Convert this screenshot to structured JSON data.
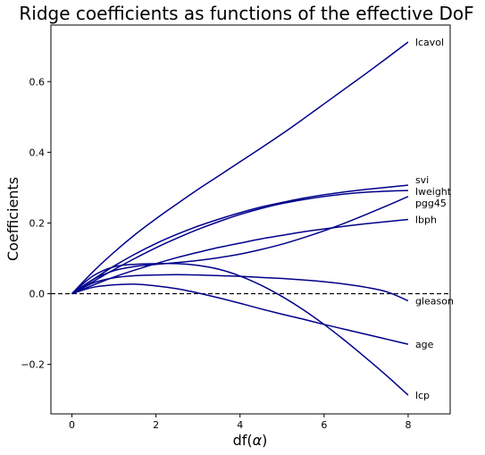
{
  "chart_data": {
    "type": "line",
    "title": "Ridge coefficients as functions of the effective DoF",
    "xlabel_prefix": "df(",
    "xlabel_symbol": "α",
    "xlabel_suffix": ")",
    "ylabel": "Coefficients",
    "xlim": [
      -0.5,
      9.0
    ],
    "ylim": [
      -0.34,
      0.76
    ],
    "xticks": [
      0,
      2,
      4,
      6,
      8
    ],
    "xtick_labels": [
      "0",
      "2",
      "4",
      "6",
      "8"
    ],
    "yticks": [
      -0.2,
      0.0,
      0.2,
      0.4,
      0.6
    ],
    "ytick_labels": [
      "−0.2",
      "0.0",
      "0.2",
      "0.4",
      "0.6"
    ],
    "grid": false,
    "reference_line": {
      "y": 0,
      "style": "dashed"
    },
    "line_color": "#00008b",
    "x": [
      0,
      0.5,
      1,
      1.5,
      2,
      2.5,
      3,
      3.5,
      4,
      4.5,
      5,
      5.5,
      6,
      6.5,
      7,
      7.5,
      8
    ],
    "series": [
      {
        "name": "lcavol",
        "values": [
          0,
          0.062,
          0.117,
          0.167,
          0.212,
          0.254,
          0.295,
          0.334,
          0.373,
          0.412,
          0.452,
          0.494,
          0.537,
          0.58,
          0.623,
          0.667,
          0.712
        ]
      },
      {
        "name": "svi",
        "values": [
          0,
          0.04,
          0.078,
          0.112,
          0.142,
          0.168,
          0.191,
          0.211,
          0.229,
          0.245,
          0.258,
          0.27,
          0.28,
          0.288,
          0.295,
          0.301,
          0.307
        ]
      },
      {
        "name": "lweight",
        "values": [
          0,
          0.034,
          0.068,
          0.1,
          0.13,
          0.157,
          0.182,
          0.204,
          0.224,
          0.241,
          0.255,
          0.266,
          0.275,
          0.282,
          0.287,
          0.29,
          0.292
        ]
      },
      {
        "name": "pgg45",
        "values": [
          0,
          0.04,
          0.065,
          0.077,
          0.083,
          0.088,
          0.094,
          0.102,
          0.112,
          0.125,
          0.14,
          0.158,
          0.178,
          0.2,
          0.224,
          0.249,
          0.275
        ]
      },
      {
        "name": "lbph",
        "values": [
          0,
          0.024,
          0.047,
          0.067,
          0.085,
          0.102,
          0.117,
          0.131,
          0.143,
          0.155,
          0.165,
          0.175,
          0.183,
          0.191,
          0.198,
          0.204,
          0.21
        ]
      },
      {
        "name": "gleason",
        "values": [
          0,
          0.03,
          0.045,
          0.051,
          0.053,
          0.054,
          0.053,
          0.051,
          0.049,
          0.046,
          0.043,
          0.039,
          0.034,
          0.027,
          0.018,
          0.005,
          -0.02
        ]
      },
      {
        "name": "age",
        "values": [
          0,
          0.018,
          0.025,
          0.027,
          0.022,
          0.014,
          0.002,
          -0.012,
          -0.027,
          -0.043,
          -0.058,
          -0.072,
          -0.087,
          -0.101,
          -0.115,
          -0.129,
          -0.143
        ]
      },
      {
        "name": "lcp",
        "values": [
          0,
          0.05,
          0.076,
          0.083,
          0.085,
          0.085,
          0.08,
          0.069,
          0.05,
          0.024,
          -0.008,
          -0.045,
          -0.087,
          -0.133,
          -0.182,
          -0.233,
          -0.287
        ]
      }
    ]
  }
}
